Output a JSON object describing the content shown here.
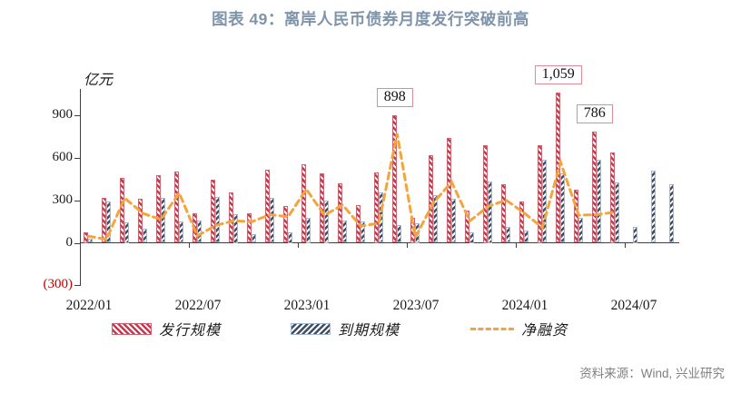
{
  "title": "图表 49：离岸人民币债券月度发行突破前高",
  "y_axis": {
    "unit_label": "亿元",
    "ticks": [
      {
        "label": "900",
        "value": 900
      },
      {
        "label": "600",
        "value": 600
      },
      {
        "label": "300",
        "value": 300
      },
      {
        "label": "0",
        "value": 0
      },
      {
        "label": "(300)",
        "value": -300,
        "negative": true
      }
    ]
  },
  "x_axis": {
    "labels": [
      {
        "text": "2022/01",
        "month": "2022/01"
      },
      {
        "text": "2022/07",
        "month": "2022/07"
      },
      {
        "text": "2023/01",
        "month": "2023/01"
      },
      {
        "text": "2023/07",
        "month": "2023/07"
      },
      {
        "text": "2024/01",
        "month": "2024/01"
      },
      {
        "text": "2024/07",
        "month": "2024/07"
      }
    ]
  },
  "legend": [
    {
      "label": "发行规模",
      "swatch": "bar-red"
    },
    {
      "label": "到期规模",
      "swatch": "bar-navy"
    },
    {
      "label": "净融资",
      "swatch": "line-orange"
    }
  ],
  "annotations": [
    {
      "text": "898",
      "month": "2023/06"
    },
    {
      "text": "1,059",
      "month": "2024/03"
    },
    {
      "text": "786",
      "month": "2024/05"
    }
  ],
  "source": "资料来源：Wind, 兴业研究",
  "colors": {
    "issuance": "#c23b4f",
    "issuance_border": "#ca6370",
    "maturity": "#3f4d66",
    "maturity_border": "#9db8d6",
    "net_line": "#f2a43d",
    "title": "#7f94aa",
    "negative_tick": "#c00000",
    "annotation_border": "#de8b94",
    "axis": "#3f3f3f",
    "source_text": "#808080"
  },
  "chart_data": {
    "type": "bar+line",
    "unit": "亿元",
    "grid": false,
    "legend_position": "bottom",
    "ylim": [
      -300,
      1200
    ],
    "y_tick_step": 300,
    "categories": [
      "2022/01",
      "2022/02",
      "2022/03",
      "2022/04",
      "2022/05",
      "2022/06",
      "2022/07",
      "2022/08",
      "2022/09",
      "2022/10",
      "2022/11",
      "2022/12",
      "2023/01",
      "2023/02",
      "2023/03",
      "2023/04",
      "2023/05",
      "2023/06",
      "2023/07",
      "2023/08",
      "2023/09",
      "2023/10",
      "2023/11",
      "2023/12",
      "2024/01",
      "2024/02",
      "2024/03",
      "2024/04",
      "2024/05",
      "2024/06",
      "2024/07",
      "2024/08",
      "2024/09"
    ],
    "series": [
      {
        "name": "发行规模",
        "type": "bar",
        "values": [
          74,
          319,
          460,
          309,
          480,
          501,
          208,
          448,
          358,
          208,
          518,
          258,
          554,
          493,
          422,
          268,
          497,
          898,
          176,
          620,
          740,
          228,
          689,
          411,
          294,
          692,
          1059,
          373,
          786,
          641,
          null,
          null,
          null
        ]
      },
      {
        "name": "到期规模",
        "type": "bar",
        "values": [
          27,
          294,
          144,
          101,
          315,
          149,
          159,
          326,
          202,
          59,
          319,
          74,
          176,
          298,
          155,
          151,
          358,
          127,
          138,
          337,
          310,
          74,
          433,
          110,
          84,
          585,
          490,
          178,
          587,
          424,
          112,
          508,
          414
        ]
      },
      {
        "name": "净融资",
        "type": "line",
        "values": [
          47,
          25,
          316,
          208,
          165,
          352,
          49,
          122,
          156,
          149,
          199,
          184,
          378,
          195,
          267,
          117,
          139,
          771,
          38,
          283,
          430,
          154,
          256,
          301,
          210,
          107,
          569,
          195,
          199,
          217,
          null,
          null,
          null
        ]
      }
    ]
  }
}
